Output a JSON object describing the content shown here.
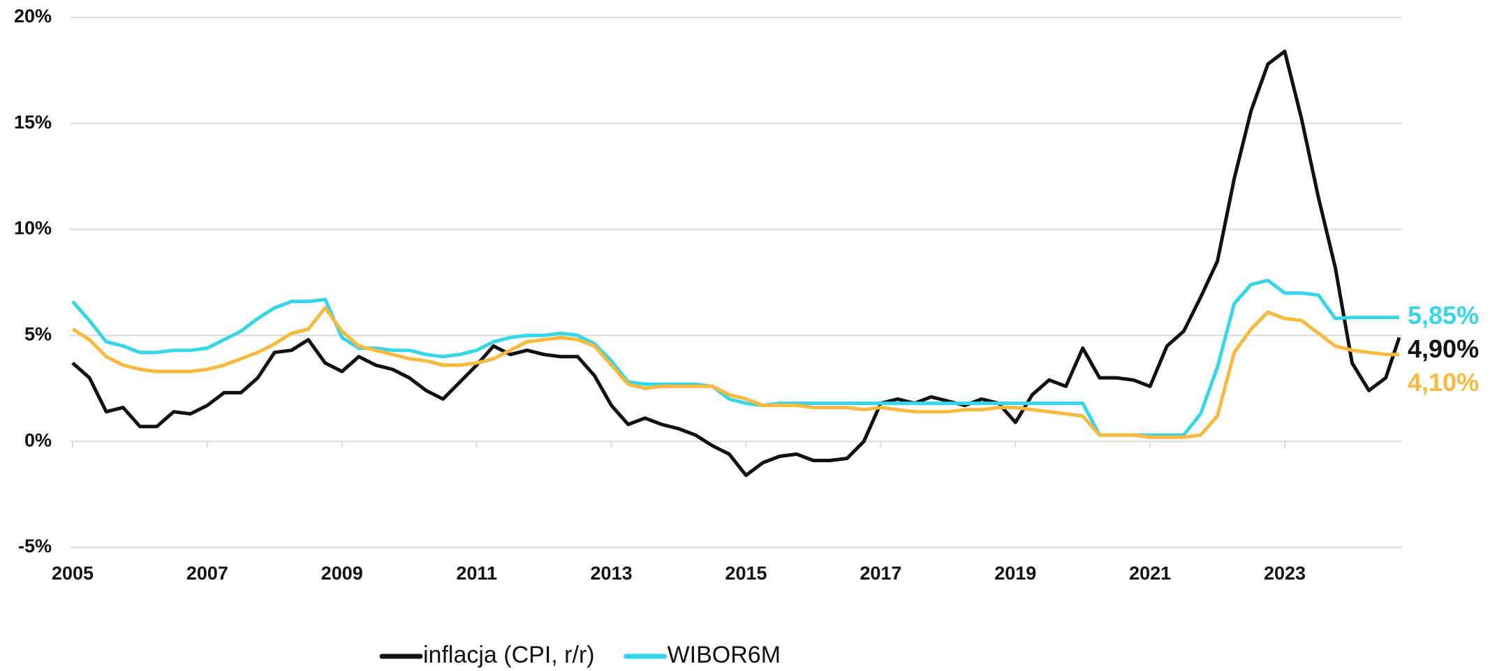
{
  "chart_data": {
    "type": "line",
    "x": [
      2005,
      2005.25,
      2005.5,
      2005.75,
      2006,
      2006.25,
      2006.5,
      2006.75,
      2007,
      2007.25,
      2007.5,
      2007.75,
      2008,
      2008.25,
      2008.5,
      2008.75,
      2009,
      2009.25,
      2009.5,
      2009.75,
      2010,
      2010.25,
      2010.5,
      2010.75,
      2011,
      2011.25,
      2011.5,
      2011.75,
      2012,
      2012.25,
      2012.5,
      2012.75,
      2013,
      2013.25,
      2013.5,
      2013.75,
      2014,
      2014.25,
      2014.5,
      2014.75,
      2015,
      2015.25,
      2015.5,
      2015.75,
      2016,
      2016.25,
      2016.5,
      2016.75,
      2017,
      2017.25,
      2017.5,
      2017.75,
      2018,
      2018.25,
      2018.5,
      2018.75,
      2019,
      2019.25,
      2019.5,
      2019.75,
      2020,
      2020.25,
      2020.5,
      2020.75,
      2021,
      2021.25,
      2021.5,
      2021.75,
      2022,
      2022.25,
      2022.5,
      2022.75,
      2023,
      2023.25,
      2023.5,
      2023.75,
      2024,
      2024.25,
      2024.5,
      2024.7
    ],
    "series": [
      {
        "name": "inflacja (CPI, r/r)",
        "color": "#111111",
        "values": [
          3.7,
          3.0,
          1.4,
          1.6,
          0.7,
          0.7,
          1.4,
          1.3,
          1.7,
          2.3,
          2.3,
          3.0,
          4.2,
          4.3,
          4.8,
          3.7,
          3.3,
          4.0,
          3.6,
          3.4,
          3.0,
          2.4,
          2.0,
          2.8,
          3.6,
          4.5,
          4.1,
          4.3,
          4.1,
          4.0,
          4.0,
          3.1,
          1.7,
          0.8,
          1.1,
          0.8,
          0.6,
          0.3,
          -0.2,
          -0.6,
          -1.6,
          -1.0,
          -0.7,
          -0.6,
          -0.9,
          -0.9,
          -0.8,
          0.0,
          1.8,
          2.0,
          1.8,
          2.1,
          1.9,
          1.7,
          2.0,
          1.8,
          0.9,
          2.2,
          2.9,
          2.6,
          4.4,
          3.0,
          3.0,
          2.9,
          2.6,
          4.5,
          5.2,
          6.8,
          8.5,
          12.4,
          15.6,
          17.8,
          18.4,
          15.2,
          11.5,
          8.2,
          3.7,
          2.4,
          3.0,
          4.9
        ],
        "value_labels": [
          null,
          null,
          null,
          null,
          null,
          null,
          null,
          null,
          null,
          null,
          null,
          null,
          null,
          null,
          null,
          null,
          null,
          null,
          null,
          null,
          null,
          null,
          null,
          null,
          null,
          null,
          null,
          null,
          null,
          null,
          null,
          null,
          null,
          null,
          null,
          null,
          null,
          null,
          null,
          null,
          null,
          null,
          null,
          null,
          null,
          null,
          null,
          null,
          null,
          null,
          null,
          null,
          null,
          null,
          null,
          null,
          null,
          null,
          null,
          null,
          null,
          null,
          null,
          null,
          null,
          null,
          null,
          null,
          null,
          null,
          null,
          null,
          null,
          null,
          null,
          null,
          null,
          null,
          null,
          "4,90%"
        ]
      },
      {
        "name": "WIBOR6M",
        "color": "#33d6ea",
        "values": [
          6.6,
          5.7,
          4.7,
          4.5,
          4.2,
          4.2,
          4.3,
          4.3,
          4.4,
          4.8,
          5.2,
          5.8,
          6.3,
          6.6,
          6.6,
          6.7,
          4.9,
          4.4,
          4.4,
          4.3,
          4.3,
          4.1,
          4.0,
          4.1,
          4.3,
          4.7,
          4.9,
          5.0,
          5.0,
          5.1,
          5.0,
          4.6,
          3.8,
          2.8,
          2.7,
          2.7,
          2.7,
          2.7,
          2.6,
          2.0,
          1.8,
          1.7,
          1.8,
          1.8,
          1.8,
          1.8,
          1.8,
          1.8,
          1.8,
          1.8,
          1.8,
          1.8,
          1.8,
          1.8,
          1.8,
          1.8,
          1.8,
          1.8,
          1.8,
          1.8,
          1.8,
          0.3,
          0.3,
          0.3,
          0.3,
          0.3,
          0.3,
          1.3,
          3.5,
          6.5,
          7.4,
          7.6,
          7.0,
          7.0,
          6.9,
          5.8,
          5.85,
          5.85,
          5.85,
          5.85
        ],
        "value_labels": [
          null,
          null,
          null,
          null,
          null,
          null,
          null,
          null,
          null,
          null,
          null,
          null,
          null,
          null,
          null,
          null,
          null,
          null,
          null,
          null,
          null,
          null,
          null,
          null,
          null,
          null,
          null,
          null,
          null,
          null,
          null,
          null,
          null,
          null,
          null,
          null,
          null,
          null,
          null,
          null,
          null,
          null,
          null,
          null,
          null,
          null,
          null,
          null,
          null,
          null,
          null,
          null,
          null,
          null,
          null,
          null,
          null,
          null,
          null,
          null,
          null,
          null,
          null,
          null,
          null,
          null,
          null,
          null,
          null,
          null,
          null,
          null,
          null,
          null,
          null,
          null,
          null,
          null,
          null,
          "5,85%"
        ]
      },
      {
        "color": "#f8b93c",
        "values": [
          5.3,
          4.8,
          4.0,
          3.6,
          3.4,
          3.3,
          3.3,
          3.3,
          3.4,
          3.6,
          3.9,
          4.2,
          4.6,
          5.1,
          5.3,
          6.3,
          5.2,
          4.5,
          4.3,
          4.1,
          3.9,
          3.8,
          3.6,
          3.6,
          3.7,
          3.9,
          4.3,
          4.7,
          4.8,
          4.9,
          4.8,
          4.5,
          3.6,
          2.7,
          2.5,
          2.6,
          2.6,
          2.6,
          2.6,
          2.2,
          2.0,
          1.7,
          1.7,
          1.7,
          1.6,
          1.6,
          1.6,
          1.5,
          1.6,
          1.5,
          1.4,
          1.4,
          1.4,
          1.5,
          1.5,
          1.6,
          1.6,
          1.5,
          1.4,
          1.3,
          1.2,
          0.3,
          0.3,
          0.3,
          0.2,
          0.2,
          0.2,
          0.3,
          1.2,
          4.2,
          5.3,
          6.1,
          5.8,
          5.7,
          5.1,
          4.5,
          4.3,
          4.2,
          4.1,
          4.1
        ],
        "value_labels": [
          null,
          null,
          null,
          null,
          null,
          null,
          null,
          null,
          null,
          null,
          null,
          null,
          null,
          null,
          null,
          null,
          null,
          null,
          null,
          null,
          null,
          null,
          null,
          null,
          null,
          null,
          null,
          null,
          null,
          null,
          null,
          null,
          null,
          null,
          null,
          null,
          null,
          null,
          null,
          null,
          null,
          null,
          null,
          null,
          null,
          null,
          null,
          null,
          null,
          null,
          null,
          null,
          null,
          null,
          null,
          null,
          null,
          null,
          null,
          null,
          null,
          null,
          null,
          null,
          null,
          null,
          null,
          null,
          null,
          null,
          null,
          null,
          null,
          null,
          null,
          null,
          null,
          null,
          null,
          "4,10%"
        ]
      }
    ],
    "xlim": [
      2005,
      2024.7
    ],
    "xticks": [
      2005,
      2007,
      2009,
      2011,
      2013,
      2015,
      2017,
      2019,
      2021,
      2023
    ],
    "ylim": [
      -5,
      20
    ],
    "yticks": [
      {
        "value": -5,
        "label": "-5%"
      },
      {
        "value": 0,
        "label": "0%"
      },
      {
        "value": 5,
        "label": "5%"
      },
      {
        "value": 10,
        "label": "10%"
      },
      {
        "value": 15,
        "label": "15%"
      },
      {
        "value": 20,
        "label": "20%"
      }
    ],
    "grid": true
  }
}
